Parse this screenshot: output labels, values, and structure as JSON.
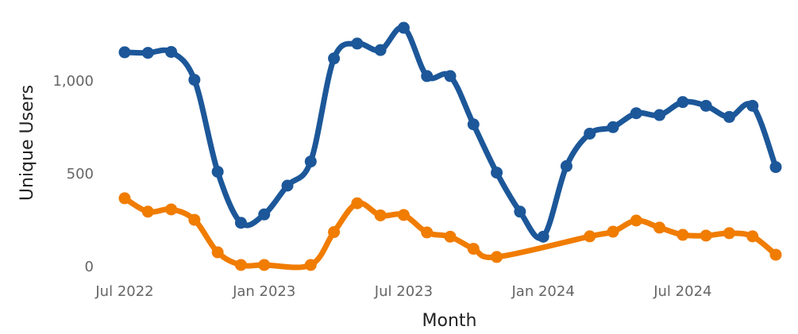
{
  "chart_data": {
    "type": "line",
    "xlabel": "Month",
    "ylabel": "Unique Users",
    "xlim": [
      "2022-07",
      "2024-11"
    ],
    "xticks": [
      {
        "value": "2022-07",
        "label": "Jul 2022"
      },
      {
        "value": "2023-01",
        "label": "Jan 2023"
      },
      {
        "value": "2023-07",
        "label": "Jul 2023"
      },
      {
        "value": "2024-01",
        "label": "Jan 2024"
      },
      {
        "value": "2024-07",
        "label": "Jul 2024"
      }
    ],
    "ylim": [
      0,
      1320
    ],
    "yticks": [
      0,
      500,
      {
        "value": 1000,
        "label": "1,000"
      }
    ],
    "grid": false,
    "series": [
      {
        "color": "#1c5799",
        "x": [
          "2022-07",
          "2022-08",
          "2022-09",
          "2022-10",
          "2022-11",
          "2022-12",
          "2023-01",
          "2023-02",
          "2023-03",
          "2023-04",
          "2023-05",
          "2023-06",
          "2023-07",
          "2023-08",
          "2023-09",
          "2023-10",
          "2023-11",
          "2023-12",
          "2024-01",
          "2024-02",
          "2024-03",
          "2024-04",
          "2024-05",
          "2024-06",
          "2024-07",
          "2024-08",
          "2024-09",
          "2024-10",
          "2024-11"
        ],
        "values": [
          1158,
          1155,
          1160,
          1010,
          515,
          240,
          285,
          440,
          570,
          1125,
          1205,
          1170,
          1290,
          1030,
          1030,
          770,
          510,
          300,
          165,
          545,
          720,
          755,
          830,
          820,
          890,
          870,
          810,
          870,
          540
        ]
      },
      {
        "color": "#f07c00",
        "x": [
          "2022-07",
          "2022-08",
          "2022-09",
          "2022-10",
          "2022-11",
          "2022-12",
          "2023-01",
          "2023-03",
          "2023-04",
          "2023-05",
          "2023-06",
          "2023-07",
          "2023-08",
          "2023-09",
          "2023-10",
          "2023-11",
          "2024-03",
          "2024-04",
          "2024-05",
          "2024-06",
          "2024-07",
          "2024-08",
          "2024-09",
          "2024-10",
          "2024-11"
        ],
        "values": [
          372,
          300,
          312,
          256,
          81,
          13,
          13,
          13,
          190,
          345,
          280,
          282,
          188,
          165,
          100,
          56,
          167,
          192,
          252,
          214,
          175,
          171,
          184,
          167,
          68
        ]
      }
    ]
  }
}
